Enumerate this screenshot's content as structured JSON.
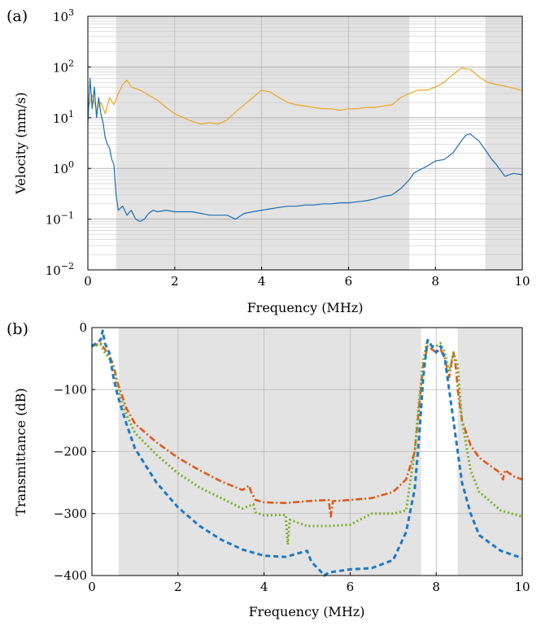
{
  "chart_data": [
    {
      "panel_label": "(a)",
      "type": "line",
      "xlabel": "Frequency (MHz)",
      "ylabel": "Velocity (mm/s)",
      "xlim": [
        0,
        10
      ],
      "ylim": [
        0.01,
        1000
      ],
      "yscale": "log",
      "grid": true,
      "x_ticks": [
        "0",
        "2",
        "4",
        "6",
        "8",
        "10"
      ],
      "y_ticks": [
        {
          "base": "10",
          "exp": "−2"
        },
        {
          "base": "10",
          "exp": "−1"
        },
        {
          "base": "10",
          "exp": "0"
        },
        {
          "base": "10",
          "exp": "1"
        },
        {
          "base": "10",
          "exp": "2"
        },
        {
          "base": "10",
          "exp": "3"
        }
      ],
      "shaded_bands": [
        [
          0.65,
          7.4
        ],
        [
          9.15,
          10
        ]
      ],
      "series": [
        {
          "color": "#e8a820",
          "x": [
            0.0,
            0.1,
            0.2,
            0.3,
            0.4,
            0.5,
            0.6,
            0.7,
            0.8,
            0.9,
            1.0,
            1.2,
            1.4,
            1.6,
            1.8,
            2.0,
            2.2,
            2.4,
            2.6,
            2.8,
            3.0,
            3.2,
            3.4,
            3.6,
            3.8,
            4.0,
            4.2,
            4.4,
            4.6,
            4.8,
            5.0,
            5.2,
            5.4,
            5.6,
            5.8,
            6.0,
            6.2,
            6.4,
            6.6,
            6.8,
            7.0,
            7.2,
            7.4,
            7.6,
            7.8,
            8.0,
            8.2,
            8.4,
            8.6,
            8.8,
            9.0,
            9.2,
            9.4,
            9.6,
            9.8,
            10.0
          ],
          "y": [
            15,
            28,
            14,
            20,
            12,
            25,
            18,
            30,
            45,
            55,
            40,
            35,
            28,
            22,
            16,
            12,
            10,
            8.5,
            7.5,
            8,
            7.5,
            9,
            13,
            18,
            25,
            35,
            32,
            25,
            20,
            18,
            17,
            16,
            15,
            15,
            14,
            15,
            15,
            16,
            16,
            17,
            18,
            25,
            30,
            35,
            35,
            40,
            50,
            70,
            95,
            90,
            65,
            50,
            45,
            42,
            38,
            34
          ]
        },
        {
          "color": "#1f6db5",
          "x": [
            0.0,
            0.05,
            0.1,
            0.15,
            0.2,
            0.25,
            0.3,
            0.35,
            0.4,
            0.45,
            0.5,
            0.55,
            0.6,
            0.65,
            0.7,
            0.8,
            0.9,
            1.0,
            1.1,
            1.2,
            1.3,
            1.4,
            1.5,
            1.6,
            1.8,
            2.0,
            2.2,
            2.4,
            2.6,
            2.8,
            3.0,
            3.2,
            3.4,
            3.6,
            3.8,
            4.0,
            4.2,
            4.4,
            4.6,
            4.8,
            5.0,
            5.2,
            5.4,
            5.6,
            5.8,
            6.0,
            6.2,
            6.4,
            6.6,
            6.8,
            7.0,
            7.2,
            7.4,
            7.5,
            7.6,
            7.8,
            8.0,
            8.2,
            8.4,
            8.6,
            8.7,
            8.8,
            9.0,
            9.2,
            9.3,
            9.4,
            9.6,
            9.8,
            10.0
          ],
          "y": [
            8,
            60,
            15,
            40,
            10,
            25,
            12,
            8,
            4,
            3,
            2.5,
            1.5,
            1.2,
            0.3,
            0.15,
            0.18,
            0.12,
            0.15,
            0.1,
            0.09,
            0.1,
            0.13,
            0.15,
            0.14,
            0.15,
            0.14,
            0.14,
            0.14,
            0.13,
            0.12,
            0.12,
            0.12,
            0.1,
            0.13,
            0.14,
            0.15,
            0.16,
            0.17,
            0.18,
            0.18,
            0.19,
            0.19,
            0.2,
            0.2,
            0.21,
            0.21,
            0.22,
            0.23,
            0.25,
            0.28,
            0.3,
            0.4,
            0.6,
            0.8,
            0.9,
            1.1,
            1.4,
            1.5,
            2.0,
            3.5,
            4.5,
            4.8,
            3.5,
            2.0,
            1.5,
            1.2,
            0.7,
            0.8,
            0.75
          ]
        }
      ]
    },
    {
      "panel_label": "(b)",
      "type": "line",
      "xlabel": "Frequency (MHz)",
      "ylabel": "Transmittance (dB)",
      "xlim": [
        0,
        10
      ],
      "ylim": [
        -400,
        0
      ],
      "grid": true,
      "x_ticks": [
        "0",
        "2",
        "4",
        "6",
        "8",
        "10"
      ],
      "y_ticks": [
        "0",
        "−100",
        "−200",
        "−300",
        "−400"
      ],
      "y_tick_values": [
        0,
        -100,
        -200,
        -300,
        -400
      ],
      "shaded_bands": [
        [
          0.62,
          7.65
        ],
        [
          8.5,
          10
        ]
      ],
      "series": [
        {
          "color": "#e05a1a",
          "style": "dashdot",
          "x": [
            0.0,
            0.2,
            0.3,
            0.4,
            0.5,
            0.6,
            0.8,
            1.0,
            1.5,
            2.0,
            2.5,
            3.0,
            3.5,
            3.65,
            3.7,
            3.8,
            4.0,
            4.5,
            5.0,
            5.5,
            5.55,
            5.6,
            6.0,
            6.5,
            7.0,
            7.3,
            7.5,
            7.7,
            7.8,
            7.9,
            8.0,
            8.1,
            8.2,
            8.3,
            8.4,
            8.45,
            8.5,
            8.6,
            8.8,
            9.0,
            9.3,
            9.5,
            9.55,
            9.6,
            9.8,
            10.0
          ],
          "y": [
            -30,
            -25,
            -35,
            -45,
            -60,
            -90,
            -130,
            -155,
            -185,
            -210,
            -230,
            -248,
            -262,
            -255,
            -265,
            -278,
            -282,
            -283,
            -280,
            -278,
            -305,
            -280,
            -278,
            -275,
            -265,
            -245,
            -200,
            -60,
            -30,
            -35,
            -40,
            -35,
            -50,
            -80,
            -40,
            -60,
            -100,
            -150,
            -190,
            -210,
            -225,
            -235,
            -245,
            -230,
            -240,
            -245
          ]
        },
        {
          "color": "#7cae2e",
          "style": "dotted",
          "x": [
            0.0,
            0.2,
            0.3,
            0.4,
            0.5,
            0.6,
            0.8,
            1.0,
            1.5,
            2.0,
            2.5,
            3.0,
            3.5,
            3.75,
            3.8,
            4.0,
            4.5,
            4.55,
            4.6,
            5.0,
            5.5,
            6.0,
            6.5,
            7.0,
            7.3,
            7.5,
            7.6,
            7.7,
            7.8,
            7.9,
            8.0,
            8.1,
            8.2,
            8.3,
            8.4,
            8.5,
            8.6,
            8.8,
            9.0,
            9.5,
            10.0
          ],
          "y": [
            -30,
            -28,
            -40,
            -50,
            -70,
            -100,
            -140,
            -170,
            -205,
            -235,
            -258,
            -275,
            -292,
            -285,
            -298,
            -303,
            -302,
            -350,
            -310,
            -320,
            -320,
            -318,
            -300,
            -300,
            -295,
            -200,
            -120,
            -50,
            -20,
            -30,
            -30,
            -25,
            -40,
            -70,
            -40,
            -60,
            -150,
            -230,
            -265,
            -295,
            -305
          ]
        },
        {
          "color": "#1f7ac4",
          "style": "dashed",
          "x": [
            0.0,
            0.2,
            0.25,
            0.3,
            0.4,
            0.5,
            0.6,
            0.8,
            1.0,
            1.5,
            2.0,
            2.5,
            3.0,
            3.5,
            4.0,
            4.5,
            5.0,
            5.1,
            5.2,
            5.3,
            5.4,
            5.5,
            6.0,
            6.5,
            7.0,
            7.3,
            7.5,
            7.6,
            7.7,
            7.8,
            7.9,
            8.0,
            8.1,
            8.2,
            8.3,
            8.4,
            8.5,
            8.6,
            8.8,
            9.0,
            9.5,
            10.0
          ],
          "y": [
            -30,
            -20,
            -5,
            -25,
            -40,
            -80,
            -110,
            -155,
            -195,
            -250,
            -290,
            -320,
            -342,
            -358,
            -368,
            -370,
            -360,
            -378,
            -385,
            -392,
            -400,
            -395,
            -390,
            -388,
            -375,
            -330,
            -260,
            -180,
            -80,
            -20,
            -30,
            -40,
            -30,
            -50,
            -100,
            -150,
            -200,
            -250,
            -300,
            -335,
            -360,
            -372
          ]
        }
      ]
    }
  ]
}
